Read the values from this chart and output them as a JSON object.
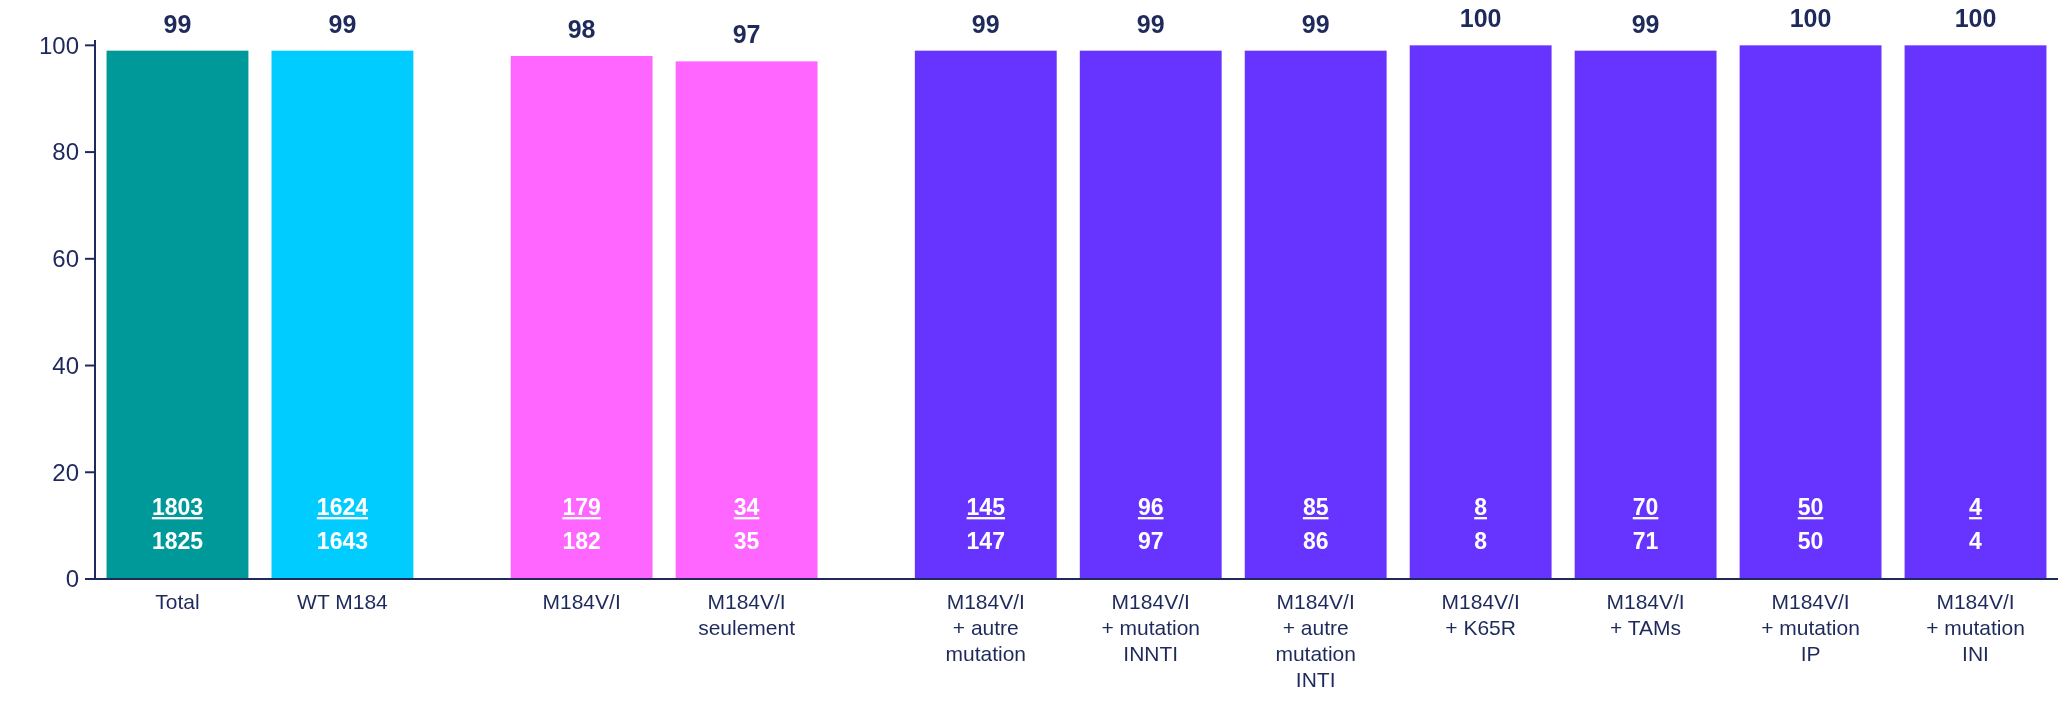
{
  "chart_data": {
    "type": "bar",
    "categories": [
      "Total",
      "WT M184",
      null,
      "M184V/I",
      "M184V/I\nseulement",
      null,
      "M184V/I\n+ autre\nmutation",
      "M184V/I\n+ mutation\nINNTI",
      "M184V/I\n+ autre\nmutation\nINTI",
      "M184V/I\n+ K65R",
      "M184V/I\n+ TAMs",
      "M184V/I\n+ mutation\nIP",
      "M184V/I\n+ mutation\nINI"
    ],
    "values": [
      99,
      99,
      null,
      98,
      97,
      null,
      99,
      99,
      99,
      100,
      99,
      100,
      100
    ],
    "colors": [
      "#009999",
      "#00ccff",
      null,
      "#ff66ff",
      "#ff66ff",
      null,
      "#6633ff",
      "#6633ff",
      "#6633ff",
      "#6633ff",
      "#6633ff",
      "#6633ff",
      "#6633ff"
    ],
    "data_labels": true,
    "ylim": [
      0,
      101
    ],
    "yticks": [
      0,
      20,
      40,
      60,
      80,
      100
    ],
    "grid": false,
    "annotations": [
      "1803",
      "1825",
      "1624",
      "1643",
      "179",
      "182",
      "34",
      "35",
      "145",
      "147",
      "96",
      "97",
      "85",
      "86",
      "8",
      "8",
      "70",
      "71",
      "50",
      "50",
      "4",
      "4"
    ]
  }
}
